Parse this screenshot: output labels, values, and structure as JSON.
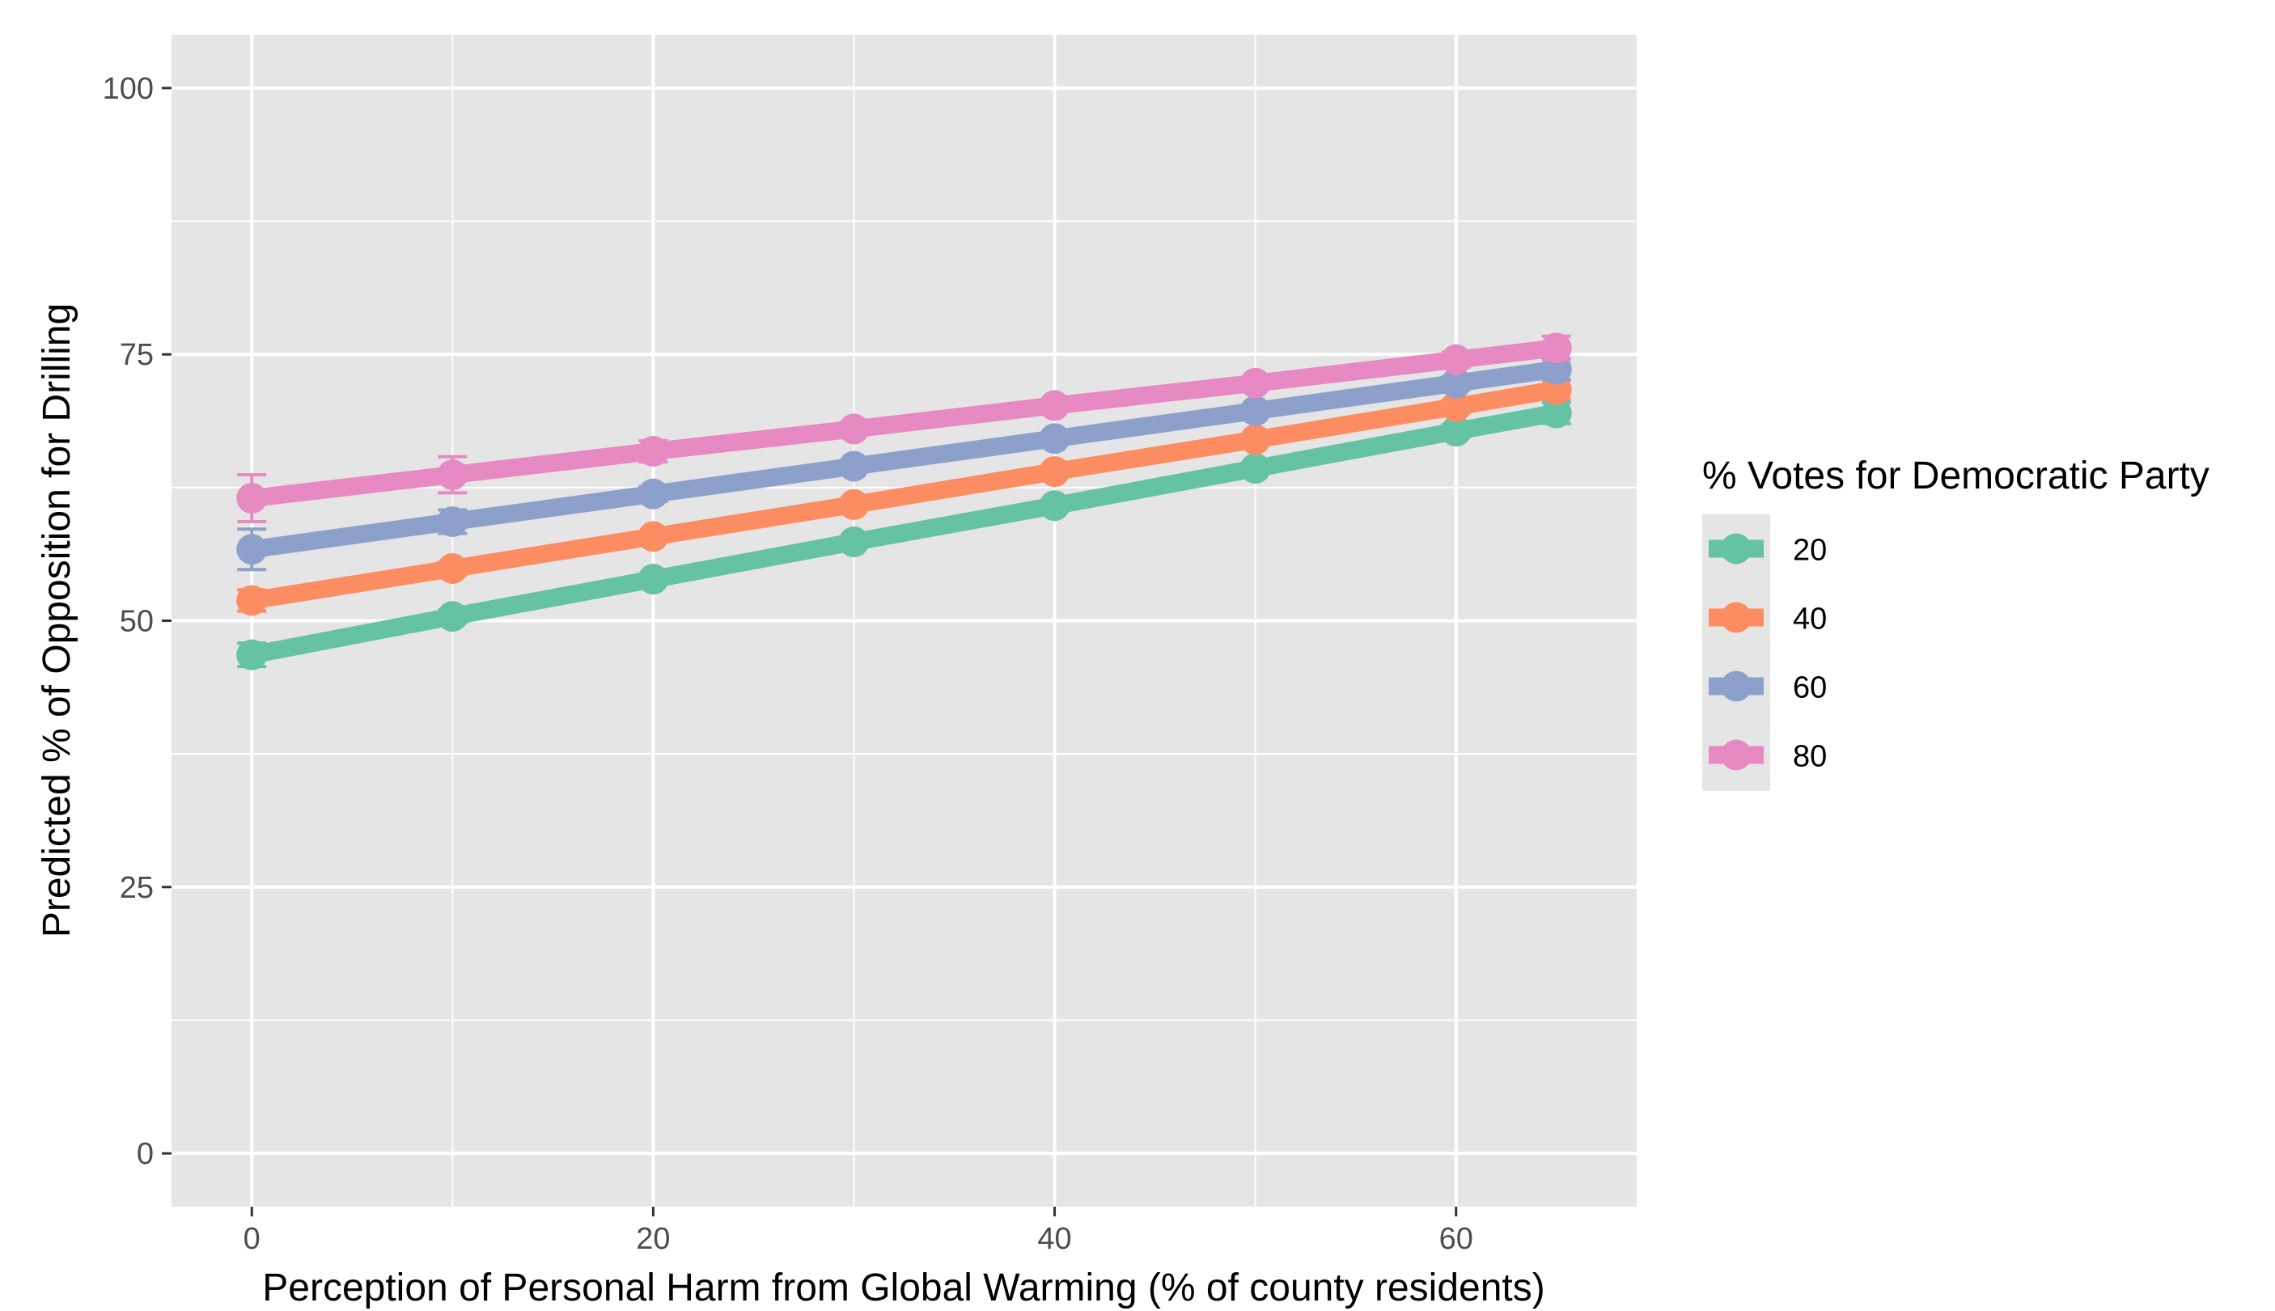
{
  "chart_data": {
    "type": "line",
    "title": "",
    "xlabel": "Perception of Personal Harm from Global Warming (% of county residents)",
    "ylabel": "Predicted % of Opposition for Drilling",
    "xlim": [
      -4,
      69
    ],
    "ylim": [
      -5,
      105
    ],
    "x_ticks": [
      0,
      20,
      40,
      60
    ],
    "x_tick_labels": [
      "0",
      "20",
      "40",
      "60"
    ],
    "x_minor_ticks": [
      10,
      30,
      50
    ],
    "y_ticks": [
      0,
      25,
      50,
      75,
      100
    ],
    "y_tick_labels": [
      "0",
      "25",
      "50",
      "75",
      "100"
    ],
    "y_minor_ticks": [
      12.5,
      37.5,
      62.5,
      87.5
    ],
    "grid": true,
    "panel_background": "#e5e5e5",
    "grid_color": "#ffffff",
    "legend": {
      "title": "% Votes for Democratic Party",
      "placement": "right",
      "background": "#e5e5e5"
    },
    "x": [
      0,
      10,
      20,
      30,
      40,
      50,
      60,
      65
    ],
    "series": [
      {
        "name": "20",
        "color": "#66c2a5",
        "values": [
          46.8,
          50.4,
          53.9,
          57.4,
          60.8,
          64.3,
          67.8,
          69.5
        ],
        "error_low": [
          45.7,
          49.8,
          53.5,
          57.1,
          60.5,
          63.9,
          67.2,
          68.5
        ],
        "error_high": [
          47.9,
          51.0,
          54.3,
          57.7,
          61.1,
          64.7,
          68.4,
          70.5
        ]
      },
      {
        "name": "40",
        "color": "#fc8d62",
        "values": [
          51.9,
          54.9,
          57.9,
          60.9,
          64.0,
          67.0,
          70.1,
          71.7
        ],
        "error_low": [
          50.9,
          54.3,
          57.5,
          60.6,
          63.7,
          66.6,
          69.5,
          70.8
        ],
        "error_high": [
          52.9,
          55.5,
          58.3,
          61.2,
          64.3,
          67.4,
          70.7,
          72.6
        ]
      },
      {
        "name": "60",
        "color": "#8da0cb",
        "values": [
          56.7,
          59.3,
          61.9,
          64.5,
          67.1,
          69.7,
          72.3,
          73.6
        ],
        "error_low": [
          54.8,
          58.2,
          61.2,
          64.0,
          66.7,
          69.3,
          71.7,
          72.6
        ],
        "error_high": [
          58.6,
          60.4,
          62.6,
          65.0,
          67.5,
          70.1,
          72.9,
          74.6
        ]
      },
      {
        "name": "80",
        "color": "#e78ac3",
        "values": [
          61.5,
          63.7,
          65.9,
          68.0,
          70.2,
          72.3,
          74.5,
          75.6
        ],
        "error_low": [
          59.3,
          62.0,
          64.9,
          67.4,
          69.7,
          71.8,
          73.8,
          74.5
        ],
        "error_high": [
          63.7,
          65.4,
          66.9,
          68.6,
          70.7,
          72.8,
          75.2,
          76.7
        ]
      }
    ]
  }
}
